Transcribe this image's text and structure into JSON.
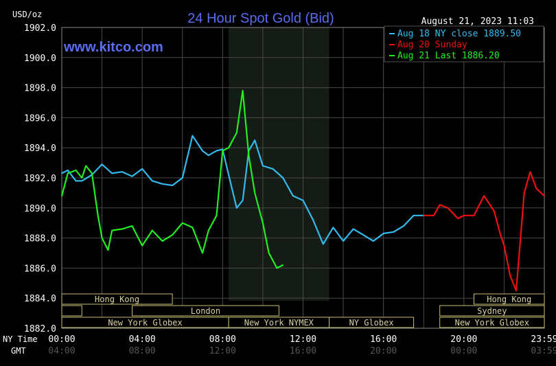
{
  "chart_data": {
    "type": "line",
    "title": "24 Hour Spot Gold (Bid)",
    "watermark": "www.kitco.com",
    "timestamp": "August 21, 2023 11:03",
    "y_unit_label": "USD/oz",
    "ylim": [
      1882.0,
      1902.0
    ],
    "y_ticks": [
      "1902.0",
      "1900.0",
      "1898.0",
      "1896.0",
      "1894.0",
      "1892.0",
      "1890.0",
      "1888.0",
      "1886.0",
      "1884.0",
      "1882.0"
    ],
    "xlim": [
      0,
      24
    ],
    "x_ticks_label_ny": "NY Time",
    "x_ticks_label_gmt": "GMT",
    "x_ticks": [
      {
        "h": 0,
        "ny": "00:00",
        "gmt": "04:00"
      },
      {
        "h": 4,
        "ny": "04:00",
        "gmt": "08:00"
      },
      {
        "h": 8,
        "ny": "08:00",
        "gmt": "12:00"
      },
      {
        "h": 12,
        "ny": "12:00",
        "gmt": "16:00"
      },
      {
        "h": 16,
        "ny": "16:00",
        "gmt": "20:00"
      },
      {
        "h": 20,
        "ny": "20:00",
        "gmt": "00:00"
      },
      {
        "h": 24,
        "ny": "23:59",
        "gmt": "03:59"
      }
    ],
    "grid": true,
    "legend_position": "top-right",
    "series": [
      {
        "name": "Aug 18 NY close 1889.50",
        "color": "#33bbee",
        "x": [
          0,
          0.3,
          0.7,
          1,
          1.5,
          2,
          2.5,
          3,
          3.5,
          4,
          4.5,
          5,
          5.5,
          6,
          6.5,
          7,
          7.3,
          7.7,
          8,
          8.3,
          8.7,
          9,
          9.3,
          9.6,
          10,
          10.5,
          11,
          11.5,
          12,
          12.5,
          13,
          13.5,
          14,
          14.5,
          15,
          15.5,
          16,
          16.5,
          17,
          17.5,
          18
        ],
        "y": [
          1892.3,
          1892.5,
          1891.8,
          1891.8,
          1892.2,
          1892.9,
          1892.3,
          1892.4,
          1892.1,
          1892.6,
          1891.8,
          1891.6,
          1891.5,
          1892.0,
          1894.8,
          1893.8,
          1893.5,
          1893.8,
          1893.9,
          1892.2,
          1890.0,
          1890.5,
          1893.8,
          1894.5,
          1892.8,
          1892.6,
          1892.0,
          1890.8,
          1890.5,
          1889.2,
          1887.6,
          1888.7,
          1887.8,
          1888.6,
          1888.2,
          1887.8,
          1888.3,
          1888.4,
          1888.8,
          1889.5,
          1889.5
        ]
      },
      {
        "name": "Aug 20 Sunday",
        "color": "#ee1111",
        "x": [
          18,
          18.5,
          18.8,
          19.2,
          19.7,
          20,
          20.5,
          21,
          21.5,
          21.8,
          22,
          22.3,
          22.6,
          23,
          23.3,
          23.6,
          24
        ],
        "y": [
          1889.5,
          1889.5,
          1890.2,
          1890.0,
          1889.3,
          1889.5,
          1889.5,
          1890.8,
          1889.8,
          1888.3,
          1887.5,
          1885.5,
          1884.5,
          1891.0,
          1892.4,
          1891.3,
          1890.8
        ]
      },
      {
        "name": "Aug 21 Last 1886.20",
        "color": "#22ee22",
        "x": [
          0,
          0.3,
          0.7,
          1,
          1.2,
          1.5,
          1.8,
          2,
          2.3,
          2.5,
          3,
          3.5,
          4,
          4.5,
          5,
          5.5,
          6,
          6.5,
          7,
          7.3,
          7.7,
          8,
          8.3,
          8.7,
          9,
          9.3,
          9.6,
          10,
          10.3,
          10.7,
          11
        ],
        "y": [
          1890.8,
          1892.3,
          1892.5,
          1892.0,
          1892.8,
          1892.3,
          1889.5,
          1888.0,
          1887.2,
          1888.5,
          1888.6,
          1888.8,
          1887.5,
          1888.5,
          1887.8,
          1888.2,
          1889.0,
          1888.7,
          1887.0,
          1888.5,
          1889.5,
          1893.8,
          1894.0,
          1895.0,
          1897.8,
          1893.5,
          1891.0,
          1889.0,
          1887.0,
          1886.0,
          1886.2
        ]
      }
    ],
    "highlight_band_hours": [
      8.3,
      13.3
    ],
    "sessions": [
      {
        "row": 1,
        "label": "Hong Kong",
        "start": 0,
        "end": 5.5
      },
      {
        "row": 1,
        "label": "Hong Kong",
        "start": 20.5,
        "end": 24
      },
      {
        "row": 2,
        "label": "",
        "start": 0,
        "end": 1
      },
      {
        "row": 2,
        "label": "London",
        "start": 3.5,
        "end": 10.8
      },
      {
        "row": 2,
        "label": "Sydney",
        "start": 18.8,
        "end": 24
      },
      {
        "row": 3,
        "label": "New York Globex",
        "start": 0,
        "end": 8.3
      },
      {
        "row": 3,
        "label": "New York NYMEX",
        "start": 8.3,
        "end": 13.3
      },
      {
        "row": 3,
        "label": "NY Globex",
        "start": 13.3,
        "end": 17.5
      },
      {
        "row": 3,
        "label": "New York Globex",
        "start": 18.8,
        "end": 24
      }
    ]
  }
}
